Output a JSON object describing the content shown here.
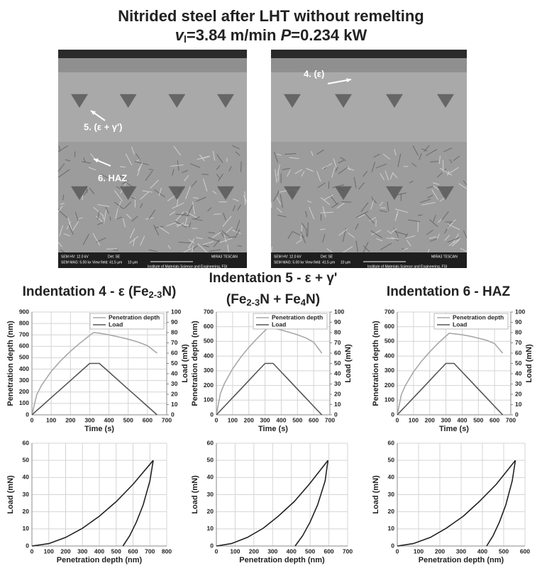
{
  "header": {
    "line1": "Nitrided steel after LHT without remelting",
    "line2": [
      "v",
      "l",
      "=3.84 m/min ",
      "P",
      "=0.234 kW"
    ]
  },
  "images": [
    {
      "labels": [
        "5. (ε + γ')",
        "6. HAZ"
      ],
      "info": [
        "SEM HV: 12.0 kV",
        "Det: SE",
        "SEM MAG: 5.00 kx",
        "View field: 41.5 μm",
        "10 μm",
        "MIRA3 TESCAN",
        "Institute of Materials Science and Engineering, FSI"
      ]
    },
    {
      "labels": [
        "4. (ε)"
      ],
      "info": [
        "SEM HV: 12.0 kV",
        "Det: SE",
        "SEM MAG: 5.00 kx",
        "View field: 41.5 μm",
        "10 μm",
        "MIRA3 TESCAN",
        "Institute of Materials Science and Engineering, FSI"
      ]
    }
  ],
  "chart_data": [
    {
      "type": "line",
      "title": [
        [
          "Indentation 4 - ε (Fe",
          "2-3",
          "N)"
        ]
      ],
      "xlabel": "Time (s)",
      "ylabel": "Penetration depth (nm)",
      "y2label": "Load (mN)",
      "x": [
        0,
        25,
        50,
        100,
        150,
        200,
        250,
        300,
        320,
        350,
        400,
        450,
        500,
        550,
        600,
        650
      ],
      "series": [
        {
          "name": "Penetration depth",
          "color": "#a8a8a8",
          "values": [
            0,
            177,
            259,
            379,
            474,
            556,
            629,
            695,
            720,
            715,
            700,
            682,
            662,
            638,
            605,
            540
          ]
        },
        {
          "name": "Load",
          "color": "#555555",
          "axis": "y2",
          "values": [
            0,
            4.2,
            8.3,
            16.7,
            25,
            33.3,
            41.7,
            50,
            50,
            50,
            41.7,
            33.3,
            25,
            16.7,
            8.3,
            0
          ]
        }
      ],
      "xlim": [
        0,
        700
      ],
      "xticks": [
        0,
        100,
        200,
        300,
        400,
        500,
        600,
        700
      ],
      "ylim": [
        0,
        900
      ],
      "yticks": [
        0,
        100,
        200,
        300,
        400,
        500,
        600,
        700,
        800,
        900
      ],
      "y2lim": [
        0,
        100
      ],
      "y2ticks": [
        0,
        10,
        20,
        30,
        40,
        50,
        60,
        70,
        80,
        90,
        100
      ],
      "grid": true,
      "legend": "upper right"
    },
    {
      "type": "line",
      "title": [
        [
          "Indentation 5 - ε + γ'"
        ],
        [
          "(Fe",
          "2-3",
          "N + Fe",
          "4",
          "N)"
        ]
      ],
      "xlabel": "Time (s)",
      "ylabel": "Penetration depth (nm)",
      "y2label": "Load (mN)",
      "x": [
        0,
        25,
        50,
        100,
        150,
        200,
        250,
        300,
        320,
        350,
        400,
        450,
        500,
        550,
        600,
        650
      ],
      "series": [
        {
          "name": "Penetration depth",
          "color": "#a8a8a8",
          "values": [
            0,
            146,
            214,
            314,
            392,
            459,
            519,
            574,
            595,
            590,
            578,
            562,
            545,
            525,
            495,
            420
          ]
        },
        {
          "name": "Load",
          "color": "#555555",
          "axis": "y2",
          "values": [
            0,
            4.2,
            8.3,
            16.7,
            25,
            33.3,
            41.7,
            50,
            50,
            50,
            41.7,
            33.3,
            25,
            16.7,
            8.3,
            0
          ]
        }
      ],
      "xlim": [
        0,
        700
      ],
      "xticks": [
        0,
        100,
        200,
        300,
        400,
        500,
        600,
        700
      ],
      "ylim": [
        0,
        700
      ],
      "yticks": [
        0,
        100,
        200,
        300,
        400,
        500,
        600,
        700
      ],
      "y2lim": [
        0,
        100
      ],
      "y2ticks": [
        0,
        10,
        20,
        30,
        40,
        50,
        60,
        70,
        80,
        90,
        100
      ],
      "grid": true,
      "legend": "upper right"
    },
    {
      "type": "line",
      "title": [
        [
          "Indentation 6 - HAZ"
        ]
      ],
      "xlabel": "Time (s)",
      "ylabel": "Penetration depth (nm)",
      "y2label": "Load (mN)",
      "x": [
        0,
        25,
        50,
        100,
        150,
        200,
        250,
        300,
        320,
        350,
        400,
        450,
        500,
        550,
        600,
        650
      ],
      "series": [
        {
          "name": "Penetration depth",
          "color": "#a8a8a8",
          "values": [
            0,
            137,
            200,
            292,
            366,
            428,
            485,
            536,
            555,
            552,
            545,
            535,
            522,
            508,
            485,
            420
          ]
        },
        {
          "name": "Load",
          "color": "#555555",
          "axis": "y2",
          "values": [
            0,
            4.2,
            8.3,
            16.7,
            25,
            33.3,
            41.7,
            50,
            50,
            50,
            41.7,
            33.3,
            25,
            16.7,
            8.3,
            0
          ]
        }
      ],
      "xlim": [
        0,
        700
      ],
      "xticks": [
        0,
        100,
        200,
        300,
        400,
        500,
        600,
        700
      ],
      "ylim": [
        0,
        700
      ],
      "yticks": [
        0,
        100,
        200,
        300,
        400,
        500,
        600,
        700
      ],
      "y2lim": [
        0,
        100
      ],
      "y2ticks": [
        0,
        10,
        20,
        30,
        40,
        50,
        60,
        70,
        80,
        90,
        100
      ],
      "grid": true,
      "legend": "upper right"
    },
    {
      "type": "line",
      "xlabel": "Penetration depth (nm)",
      "ylabel": "Load (mN)",
      "series": [
        {
          "color": "#222222",
          "x": [
            0,
            100,
            200,
            300,
            400,
            500,
            600,
            720
          ],
          "values": [
            0,
            1.4,
            5,
            10.4,
            17.4,
            25.9,
            36,
            50
          ]
        },
        {
          "color": "#222222",
          "x": [
            540,
            580,
            620,
            660,
            700,
            720
          ],
          "values": [
            0,
            6,
            14,
            24,
            38,
            50
          ]
        }
      ],
      "xlim": [
        0,
        800
      ],
      "xticks": [
        0,
        100,
        200,
        300,
        400,
        500,
        600,
        700,
        800
      ],
      "ylim": [
        0,
        60
      ],
      "yticks": [
        0,
        10,
        20,
        30,
        40,
        50,
        60
      ],
      "grid": true
    },
    {
      "type": "line",
      "xlabel": "Penetration depth (nm)",
      "ylabel": "Load (mN)",
      "series": [
        {
          "color": "#222222",
          "x": [
            0,
            80,
            165,
            250,
            330,
            415,
            495,
            595
          ],
          "values": [
            0,
            1.4,
            5,
            10.4,
            17.4,
            25.9,
            36,
            50
          ]
        },
        {
          "color": "#222222",
          "x": [
            420,
            460,
            500,
            540,
            580,
            595
          ],
          "values": [
            0,
            6,
            14,
            24,
            38,
            50
          ]
        }
      ],
      "xlim": [
        0,
        700
      ],
      "xticks": [
        0,
        100,
        200,
        300,
        400,
        500,
        600,
        700
      ],
      "ylim": [
        0,
        60
      ],
      "yticks": [
        0,
        10,
        20,
        30,
        40,
        50,
        60
      ],
      "grid": true
    },
    {
      "type": "line",
      "xlabel": "Penetration depth (nm)",
      "ylabel": "Load (mN)",
      "series": [
        {
          "color": "#222222",
          "x": [
            0,
            75,
            155,
            230,
            310,
            385,
            465,
            555
          ],
          "values": [
            0,
            1.4,
            5,
            10.4,
            17.4,
            25.9,
            36,
            50
          ]
        },
        {
          "color": "#222222",
          "x": [
            420,
            450,
            480,
            510,
            540,
            555
          ],
          "values": [
            0,
            6,
            14,
            24,
            38,
            50
          ]
        }
      ],
      "xlim": [
        0,
        600
      ],
      "xticks": [
        0,
        100,
        200,
        300,
        400,
        500,
        600
      ],
      "ylim": [
        0,
        60
      ],
      "yticks": [
        0,
        10,
        20,
        30,
        40,
        50,
        60
      ],
      "grid": true
    }
  ]
}
